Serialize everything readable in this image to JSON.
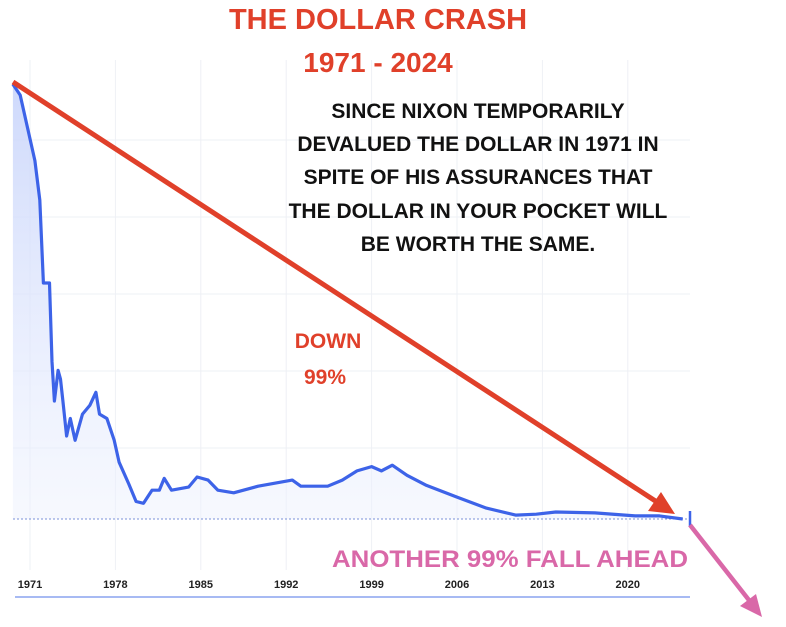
{
  "chart_data": {
    "type": "line",
    "title": "THE DOLLAR CRASH",
    "subtitle": "1971 - 2024",
    "xlabel": "",
    "ylabel": "",
    "x_ticks": [
      "1971",
      "1978",
      "1985",
      "1992",
      "1999",
      "2006",
      "2013",
      "2020"
    ],
    "xlim": [
      1969.6,
      2024.5
    ],
    "ylim": [
      0,
      100
    ],
    "grid": true,
    "series": [
      {
        "color": "#3d63e8",
        "x": [
          1969.6,
          1970.2,
          1971.0,
          1971.4,
          1971.8,
          1972.1,
          1972.6,
          1972.8,
          1973.0,
          1973.3,
          1973.5,
          1973.7,
          1974.0,
          1974.3,
          1974.7,
          1975.3,
          1975.9,
          1976.4,
          1976.7,
          1977.3,
          1977.9,
          1978.3,
          1979.1,
          1979.7,
          1980.3,
          1981.0,
          1981.6,
          1982.0,
          1982.6,
          1984.0,
          1984.7,
          1985.6,
          1986.4,
          1987.7,
          1989.7,
          1992.5,
          1993.2,
          1995.4,
          1996.6,
          1997.8,
          1999.0,
          1999.8,
          2000.7,
          2001.9,
          2003.5,
          2006.0,
          2008.4,
          2010.8,
          2012.5,
          2014.1,
          2017.3,
          2020.6,
          2022.6,
          2024.5
        ],
        "y": [
          99.5,
          97,
          87,
          82,
          73,
          54,
          54,
          36,
          27,
          34,
          32,
          27,
          19,
          23,
          18,
          24,
          26,
          29,
          24,
          23,
          18,
          13,
          8,
          4,
          3.6,
          6.6,
          6.6,
          9.3,
          6.6,
          7.3,
          9.6,
          8.9,
          6.6,
          6,
          7.5,
          8.9,
          7.5,
          7.5,
          8.9,
          11,
          12,
          11,
          12.3,
          10,
          7.7,
          5,
          2.5,
          0.9,
          1.1,
          1.6,
          1.4,
          0.7,
          0.7,
          0
        ]
      }
    ],
    "annotations": {
      "description_lines": [
        "SINCE NIXON TEMPORARILY",
        "DEVALUED THE DOLLAR IN 1971 IN",
        "SPITE OF HIS ASSURANCES THAT",
        "THE DOLLAR IN YOUR POCKET WILL",
        "BE WORTH THE SAME."
      ],
      "down_line1": "DOWN",
      "down_line2": "99%",
      "forecast": "ANOTHER  99% FALL AHEAD"
    },
    "colors": {
      "title": "#e0402a",
      "trend_arrow": "#e0402a",
      "forecast_arrow": "#d968a8",
      "text": "#111111"
    }
  }
}
